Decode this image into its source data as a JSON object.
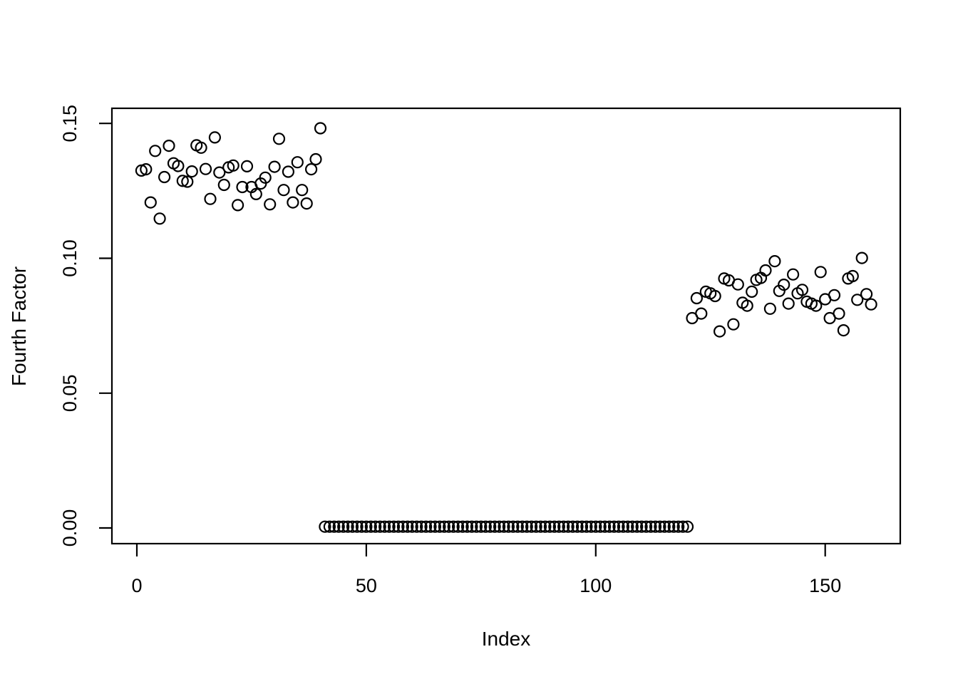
{
  "figure": {
    "background_color": "#ffffff",
    "foreground_color": "#000000"
  },
  "chart_data": {
    "type": "scatter",
    "title": "",
    "xlabel": "Index",
    "ylabel": "Fourth Factor",
    "marker": "open-circle",
    "grid": false,
    "legend": null,
    "colors": {
      "points": "#000000",
      "frame": "#000000",
      "background": "#ffffff"
    },
    "axes": {
      "xlim": [
        -5.43,
        166.36
      ],
      "ylim": [
        -0.0058,
        0.1556
      ],
      "x_ticks": [
        0,
        50,
        100,
        150
      ],
      "x_tick_labels": [
        "0",
        "50",
        "100",
        "150"
      ],
      "y_ticks": [
        0.0,
        0.05,
        0.1,
        0.15
      ],
      "y_tick_labels": [
        "0.00",
        "0.05",
        "0.10",
        "0.15"
      ],
      "y_tick_label_rotation": -90
    },
    "series": [
      {
        "name": "fourth-factor",
        "x": [
          1,
          2,
          3,
          4,
          5,
          6,
          7,
          8,
          9,
          10,
          11,
          12,
          13,
          14,
          15,
          16,
          17,
          18,
          19,
          20,
          21,
          22,
          23,
          24,
          25,
          26,
          27,
          28,
          29,
          30,
          31,
          32,
          33,
          34,
          35,
          36,
          37,
          38,
          39,
          40,
          41,
          42,
          43,
          44,
          45,
          46,
          47,
          48,
          49,
          50,
          51,
          52,
          53,
          54,
          55,
          56,
          57,
          58,
          59,
          60,
          61,
          62,
          63,
          64,
          65,
          66,
          67,
          68,
          69,
          70,
          71,
          72,
          73,
          74,
          75,
          76,
          77,
          78,
          79,
          80,
          81,
          82,
          83,
          84,
          85,
          86,
          87,
          88,
          89,
          90,
          91,
          92,
          93,
          94,
          95,
          96,
          97,
          98,
          99,
          100,
          101,
          102,
          103,
          104,
          105,
          106,
          107,
          108,
          109,
          110,
          111,
          112,
          113,
          114,
          115,
          116,
          117,
          118,
          119,
          120,
          121,
          122,
          123,
          124,
          125,
          126,
          127,
          128,
          129,
          130,
          131,
          132,
          133,
          134,
          135,
          136,
          137,
          138,
          139,
          140,
          141,
          142,
          143,
          144,
          145,
          146,
          147,
          148,
          149,
          150,
          151,
          152,
          153,
          154,
          155,
          156,
          157,
          158,
          159,
          160
        ],
        "y": [
          0.1325,
          0.133,
          0.1207,
          0.1398,
          0.1147,
          0.1301,
          0.1417,
          0.1352,
          0.1342,
          0.1287,
          0.1284,
          0.1322,
          0.1419,
          0.141,
          0.1331,
          0.122,
          0.1448,
          0.1318,
          0.1272,
          0.1337,
          0.1344,
          0.1197,
          0.1264,
          0.1341,
          0.1264,
          0.1238,
          0.1277,
          0.1299,
          0.12,
          0.1339,
          0.1443,
          0.1253,
          0.1321,
          0.1207,
          0.1356,
          0.1253,
          0.1203,
          0.133,
          0.1367,
          0.1482,
          0.0005,
          0.0005,
          0.0005,
          0.0005,
          0.0005,
          0.0005,
          0.0005,
          0.0005,
          0.0005,
          0.0005,
          0.0005,
          0.0005,
          0.0005,
          0.0005,
          0.0005,
          0.0005,
          0.0005,
          0.0005,
          0.0005,
          0.0005,
          0.0005,
          0.0005,
          0.0005,
          0.0005,
          0.0005,
          0.0005,
          0.0005,
          0.0005,
          0.0005,
          0.0005,
          0.0005,
          0.0005,
          0.0005,
          0.0005,
          0.0005,
          0.0005,
          0.0005,
          0.0005,
          0.0005,
          0.0005,
          0.0005,
          0.0005,
          0.0005,
          0.0005,
          0.0005,
          0.0005,
          0.0005,
          0.0005,
          0.0005,
          0.0005,
          0.0005,
          0.0005,
          0.0005,
          0.0005,
          0.0005,
          0.0005,
          0.0005,
          0.0005,
          0.0005,
          0.0005,
          0.0005,
          0.0005,
          0.0005,
          0.0005,
          0.0005,
          0.0005,
          0.0005,
          0.0005,
          0.0005,
          0.0005,
          0.0005,
          0.0005,
          0.0005,
          0.0005,
          0.0005,
          0.0005,
          0.0005,
          0.0005,
          0.0005,
          0.0005,
          0.0778,
          0.0852,
          0.0795,
          0.0876,
          0.087,
          0.086,
          0.0729,
          0.0925,
          0.0918,
          0.0755,
          0.0903,
          0.0835,
          0.0824,
          0.0876,
          0.092,
          0.0927,
          0.0955,
          0.0813,
          0.0989,
          0.0879,
          0.0902,
          0.0832,
          0.094,
          0.087,
          0.0883,
          0.0839,
          0.0832,
          0.0824,
          0.0949,
          0.0848,
          0.0778,
          0.0863,
          0.0795,
          0.0733,
          0.0925,
          0.0934,
          0.0846,
          0.1001,
          0.0867,
          0.0829
        ]
      }
    ]
  }
}
